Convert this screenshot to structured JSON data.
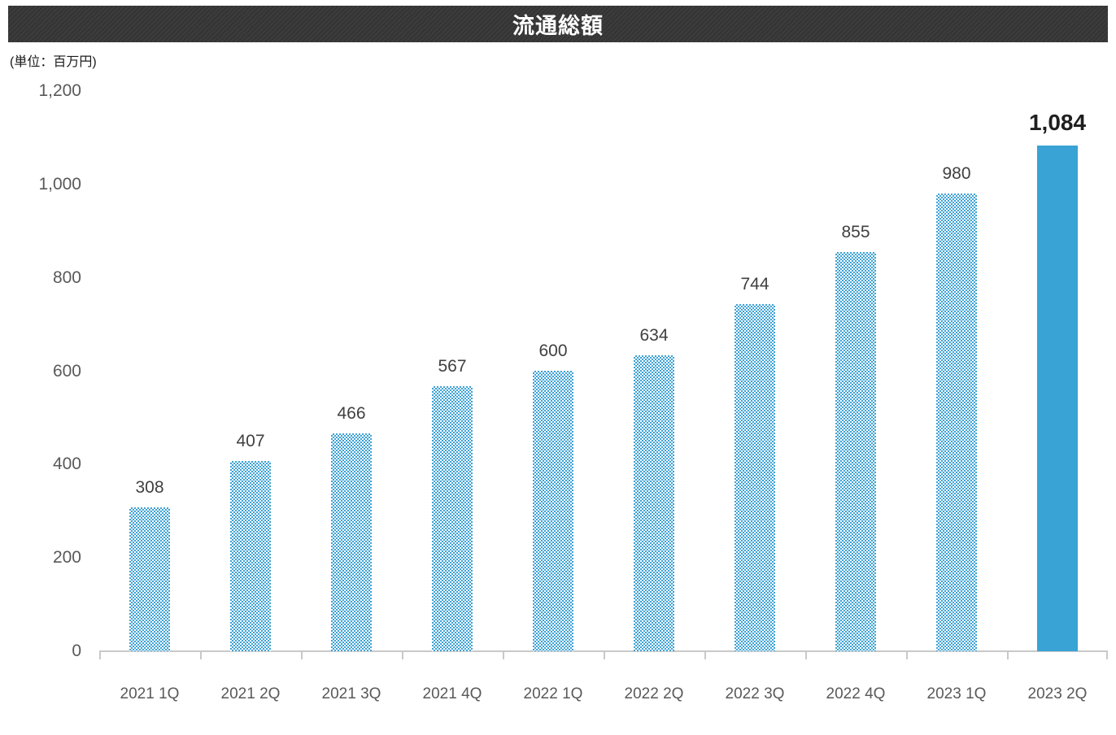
{
  "header": {
    "title": "流通総額",
    "bar_color": "#3a3a3a",
    "title_color": "#ffffff"
  },
  "unit_note": "(単位：百万円)",
  "chart_data": {
    "type": "bar",
    "title": "流通総額",
    "subtitle": "(単位：百万円)",
    "categories": [
      "2021 1Q",
      "2021 2Q",
      "2021 3Q",
      "2021 4Q",
      "2022 1Q",
      "2022 2Q",
      "2022 3Q",
      "2022 4Q",
      "2023 1Q",
      "2023 2Q"
    ],
    "values": [
      308,
      407,
      466,
      567,
      600,
      634,
      744,
      855,
      980,
      1084
    ],
    "display_values": [
      "308",
      "407",
      "466",
      "567",
      "600",
      "634",
      "744",
      "855",
      "980",
      "1,084"
    ],
    "highlight_index": 9,
    "xlabel": "",
    "ylabel": "",
    "ylim": [
      0,
      1200
    ],
    "y_tick_values": [
      0,
      200,
      400,
      600,
      800,
      1000,
      1200
    ],
    "y_tick_labels": [
      "0",
      "200",
      "400",
      "600",
      "800",
      "1,000",
      "1,200"
    ],
    "grid": false,
    "legend": false,
    "bar_pattern_color": "#3da2d6",
    "bar_highlight_color": "#39a3d5",
    "axis_color": "#c9c9c9",
    "label_color": "#404040",
    "tick_label_color": "#595959"
  }
}
